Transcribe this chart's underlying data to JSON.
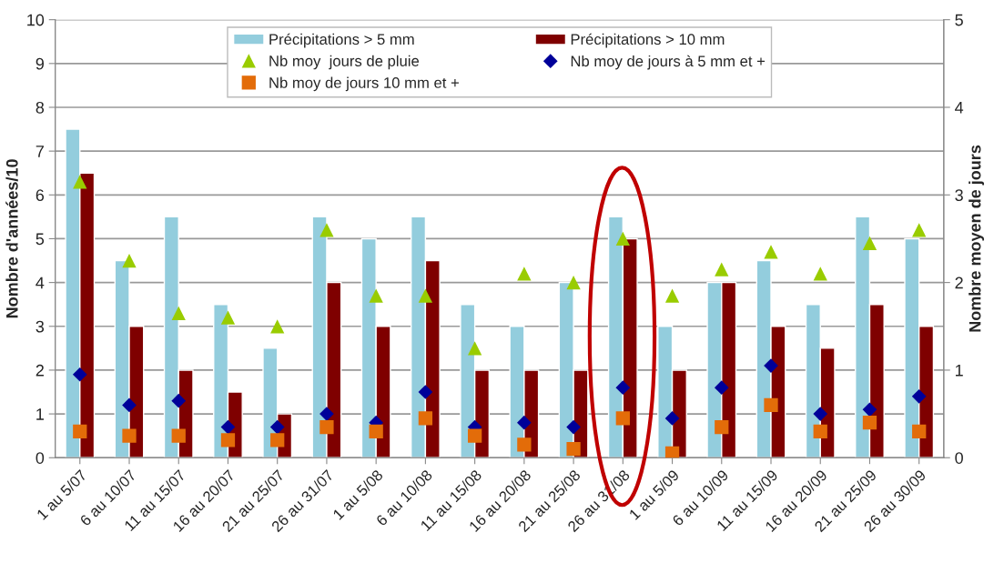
{
  "chart_data": {
    "type": "bar",
    "ylabel": "Nombre d'années/10",
    "y2label": "Nombre moyen de jours",
    "categories": [
      "1 au 5/07",
      "6 au 10/07",
      "11 au 15/07",
      "16 au 20/07",
      "21 au 25/07",
      "26 au 31/07",
      "1 au 5/08",
      "6 au 10/08",
      "11 au 15/08",
      "16 au 20/08",
      "21 au 25/08",
      "26 au 31/08",
      "1 au 5/09",
      "6 au 10/09",
      "11 au 15/09",
      "16 au 20/09",
      "21 au 25/09",
      "26 au 30/09"
    ],
    "series": [
      {
        "name": "Précipitations > 5 mm",
        "color": "#93cddd",
        "values": [
          7.5,
          4.5,
          5.5,
          3.5,
          2.5,
          5.5,
          5,
          5.5,
          3.5,
          3,
          4,
          5.5,
          3,
          4,
          4.5,
          3.5,
          5.5,
          5
        ]
      },
      {
        "name": "Précipitations > 10 mm",
        "color": "#7f0000",
        "values": [
          6.5,
          3,
          2,
          1.5,
          1,
          4,
          3,
          4.5,
          2,
          2,
          2,
          5,
          2,
          4,
          3,
          2.5,
          3.5,
          3
        ]
      },
      {
        "name": "Nb moy  jours de pluie",
        "type": "scatter",
        "axis": "y2",
        "marker": "triangle",
        "color": "#99cc00",
        "values": [
          3.15,
          2.25,
          1.65,
          1.6,
          1.5,
          2.6,
          1.85,
          1.85,
          1.25,
          2.1,
          2.0,
          2.5,
          1.85,
          2.15,
          2.35,
          2.1,
          2.45,
          2.6
        ]
      },
      {
        "name": "Nb moy de jours à 5 mm et +",
        "type": "scatter",
        "axis": "y2",
        "marker": "diamond",
        "color": "#000099",
        "values": [
          0.95,
          0.6,
          0.65,
          0.35,
          0.35,
          0.5,
          0.4,
          0.75,
          0.35,
          0.4,
          0.35,
          0.8,
          0.45,
          0.8,
          1.05,
          0.5,
          0.55,
          0.7
        ]
      },
      {
        "name": "Nb moy de jours 10 mm et +",
        "type": "scatter",
        "axis": "y2",
        "marker": "square",
        "color": "#e36c09",
        "values": [
          0.3,
          0.25,
          0.25,
          0.2,
          0.2,
          0.35,
          0.3,
          0.45,
          0.25,
          0.15,
          0.1,
          0.45,
          0.05,
          0.35,
          0.6,
          0.3,
          0.4,
          0.3
        ]
      }
    ],
    "ylim": [
      0,
      10
    ],
    "yticks": [
      0,
      1,
      2,
      3,
      4,
      5,
      6,
      7,
      8,
      9,
      10
    ],
    "y2lim": [
      0,
      5
    ],
    "y2ticks": [
      0,
      1,
      2,
      3,
      4,
      5
    ],
    "grid": "y",
    "legend": "top"
  }
}
